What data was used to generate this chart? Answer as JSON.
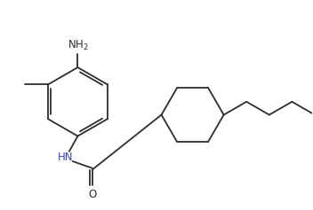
{
  "bg_color": "#ffffff",
  "line_color": "#2d2d2d",
  "line_width": 1.3,
  "font_size": 8.5,
  "nh_color": "#4040aa",
  "text_color": "#2d2d2d",
  "figsize": [
    3.52,
    2.37
  ],
  "dpi": 100,
  "xlim": [
    0.0,
    9.5
  ],
  "ylim": [
    0.5,
    6.8
  ]
}
